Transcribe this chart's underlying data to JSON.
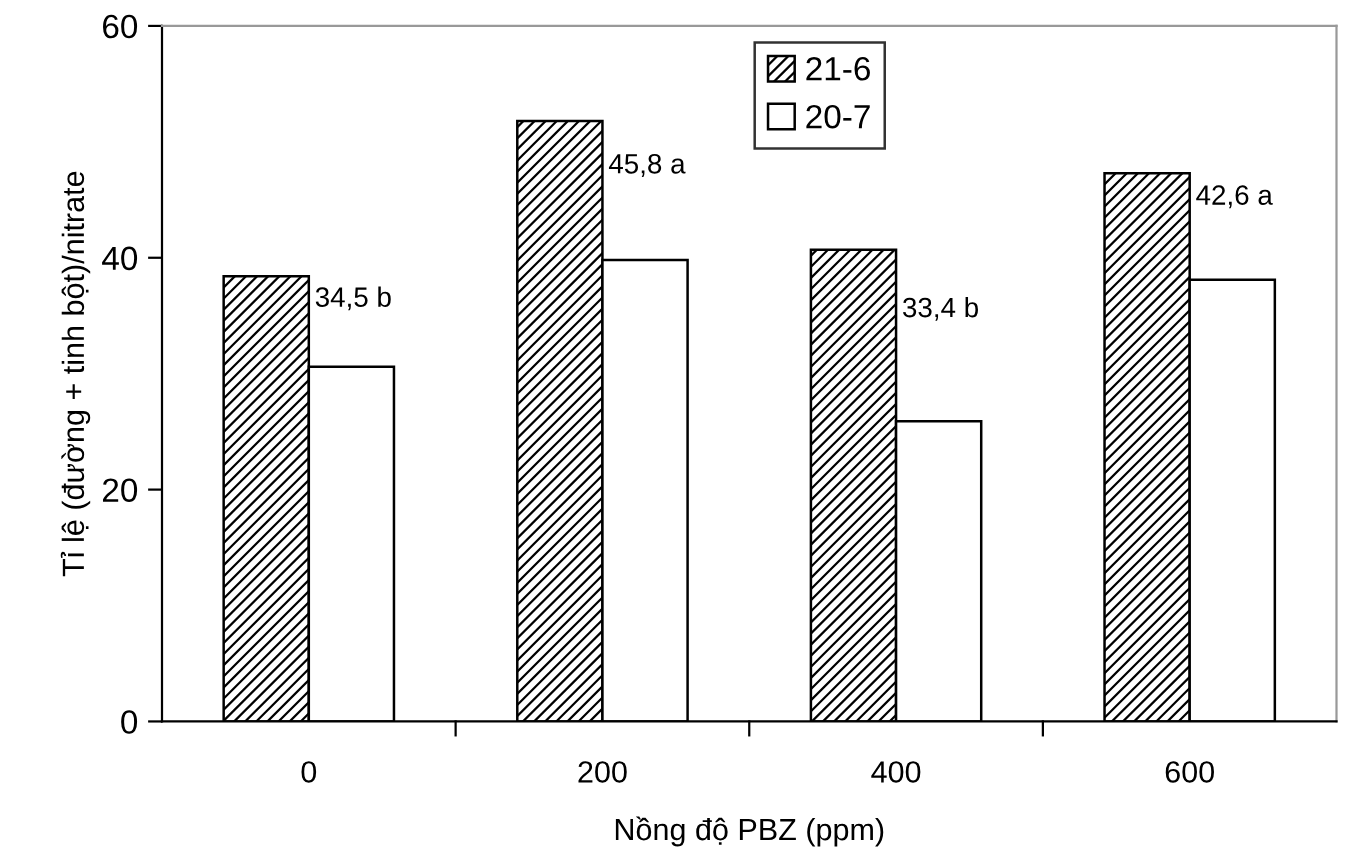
{
  "chart_data": {
    "type": "bar",
    "xlabel": "Nồng độ PBZ (ppm)",
    "ylabel": "Tỉ lệ (đường + tinh bột)/nitrate",
    "categories": [
      "0",
      "200",
      "400",
      "600"
    ],
    "series": [
      {
        "name": "21-6",
        "color": "#000000",
        "values": [
          38.4,
          51.8,
          40.7,
          47.3
        ]
      },
      {
        "name": "20-7",
        "color": "#ffffff",
        "values": [
          30.6,
          39.8,
          25.9,
          38.1
        ]
      }
    ],
    "ylim": [
      0,
      60
    ],
    "yticks": [
      0,
      20,
      40,
      60
    ],
    "grid": false,
    "legend": "top",
    "annotations": [
      {
        "text": "34,5 b",
        "x": "0",
        "y": 36.4
      },
      {
        "text": "45,8 a",
        "x": "200",
        "y": 47.9
      },
      {
        "text": "33,4 b",
        "x": "400",
        "y": 35.5
      },
      {
        "text": "42,6 a",
        "x": "600",
        "y": 45.2
      }
    ]
  }
}
